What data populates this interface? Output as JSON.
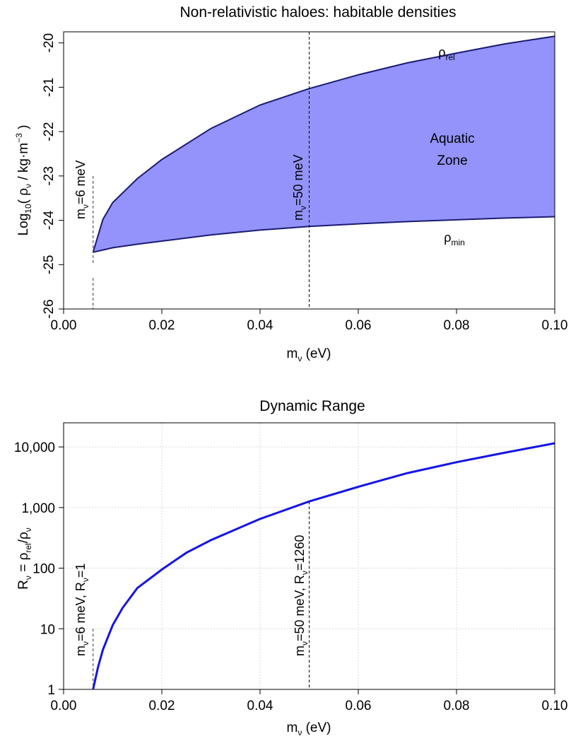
{
  "chart_data": [
    {
      "type": "area",
      "title": "Non-relativistic haloes: habitable densities",
      "xlabel": "m",
      "xlabel_sub": "ν",
      "xlabel_unit": " (eV)",
      "ylabel": "Log",
      "ylabel_sub": "10",
      "ylabel_mid": "( ρ",
      "ylabel_sub2": "ν",
      "ylabel_unit": " / kg·m",
      "ylabel_sup": "−3",
      "ylabel_end": " )",
      "xlim": [
        0,
        0.1
      ],
      "ylim": [
        -26,
        -19.75
      ],
      "grid": false,
      "x_ticks": [
        0,
        0.02,
        0.04,
        0.06,
        0.08,
        0.1
      ],
      "x_tick_labels": [
        "0.00",
        "0.02",
        "0.04",
        "0.06",
        "0.08",
        "0.10"
      ],
      "y_ticks": [
        -26,
        -25,
        -24,
        -23,
        -22,
        -21,
        -20
      ],
      "y_tick_labels": [
        "-26",
        "-25",
        "-24",
        "-23",
        "-22",
        "-21",
        "-20"
      ],
      "x": [
        0.006,
        0.008,
        0.01,
        0.015,
        0.02,
        0.03,
        0.04,
        0.05,
        0.06,
        0.07,
        0.08,
        0.09,
        0.1
      ],
      "series": [
        {
          "label": "ρ",
          "label_sub": "rel",
          "values": [
            -24.72,
            -23.98,
            -23.6,
            -23.06,
            -22.63,
            -21.93,
            -21.4,
            -21.03,
            -20.72,
            -20.45,
            -20.23,
            -20.02,
            -19.85
          ]
        },
        {
          "label": "ρ",
          "label_sub": "min",
          "values": [
            -24.72,
            -24.67,
            -24.62,
            -24.54,
            -24.47,
            -24.33,
            -24.22,
            -24.14,
            -24.08,
            -24.03,
            -23.99,
            -23.95,
            -23.92
          ]
        }
      ],
      "fill_label_1": "Aquatic",
      "fill_label_2": "Zone",
      "annotations": [
        {
          "x": 0.006,
          "text": "m",
          "sub": "ν",
          "rest": "=6 meV"
        },
        {
          "x": 0.05,
          "text": "m",
          "sub": "ν",
          "rest": "=50 meV"
        }
      ],
      "colors": {
        "fill": "#9393fb",
        "line": "#1b1b73"
      }
    },
    {
      "type": "line",
      "title": "Dynamic Range",
      "xlabel": "m",
      "xlabel_sub": "ν",
      "xlabel_unit": " (eV)",
      "ylabel": "R",
      "ylabel_sub": "ν",
      "ylabel_mid": " = ρ",
      "ylabel_sub2": "rel",
      "ylabel_mid2": "/ρ",
      "ylabel_sub3": "ν",
      "xlim": [
        0,
        0.1
      ],
      "ylim": [
        1,
        25000
      ],
      "yscale": "log",
      "grid": true,
      "x_ticks": [
        0,
        0.02,
        0.04,
        0.06,
        0.08,
        0.1
      ],
      "x_tick_labels": [
        "0.00",
        "0.02",
        "0.04",
        "0.06",
        "0.08",
        "0.10"
      ],
      "y_ticks": [
        1,
        10,
        100,
        1000,
        10000
      ],
      "y_tick_labels": [
        "1",
        "10",
        "100",
        "1,000",
        "10,000"
      ],
      "x": [
        0.006,
        0.007,
        0.008,
        0.01,
        0.012,
        0.015,
        0.02,
        0.025,
        0.03,
        0.04,
        0.05,
        0.06,
        0.07,
        0.08,
        0.09,
        0.1
      ],
      "values": [
        1,
        2.3,
        4.5,
        11.5,
        22,
        47,
        95,
        180,
        290,
        650,
        1260,
        2200,
        3700,
        5600,
        8100,
        11500
      ],
      "annotations": [
        {
          "x": 0.006,
          "text": "m",
          "sub": "ν",
          "rest": "=6 meV, R",
          "sub2": "ν",
          "rest2": "=1"
        },
        {
          "x": 0.05,
          "text": "m",
          "sub": "ν",
          "rest": "=50 meV, R",
          "sub2": "ν",
          "rest2": "=1260"
        }
      ],
      "colors": {
        "line": "#1515e6",
        "grid": "#d9d9d9"
      }
    }
  ]
}
